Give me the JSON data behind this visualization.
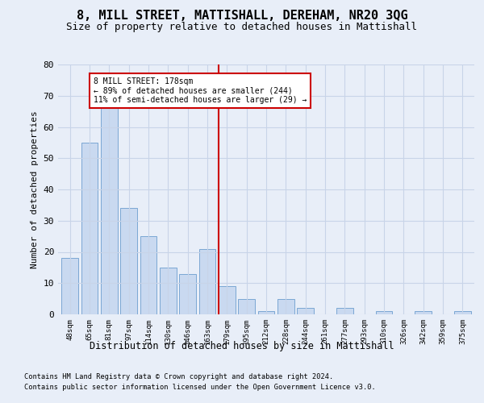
{
  "title": "8, MILL STREET, MATTISHALL, DEREHAM, NR20 3QG",
  "subtitle": "Size of property relative to detached houses in Mattishall",
  "xlabel_bottom": "Distribution of detached houses by size in Mattishall",
  "ylabel": "Number of detached properties",
  "bar_labels": [
    "48sqm",
    "65sqm",
    "81sqm",
    "97sqm",
    "114sqm",
    "130sqm",
    "146sqm",
    "163sqm",
    "179sqm",
    "195sqm",
    "212sqm",
    "228sqm",
    "244sqm",
    "261sqm",
    "277sqm",
    "293sqm",
    "310sqm",
    "326sqm",
    "342sqm",
    "359sqm",
    "375sqm"
  ],
  "bar_values": [
    18,
    55,
    66,
    34,
    25,
    15,
    13,
    21,
    9,
    5,
    1,
    5,
    2,
    0,
    2,
    0,
    1,
    0,
    1,
    0,
    1
  ],
  "bar_color": "#c9d9f0",
  "bar_edgecolor": "#7ba7d4",
  "highlight_line_index": 8,
  "highlight_line_color": "#cc0000",
  "annotation_text": "8 MILL STREET: 178sqm\n← 89% of detached houses are smaller (244)\n11% of semi-detached houses are larger (29) →",
  "annotation_box_color": "#ffffff",
  "annotation_box_edgecolor": "#cc0000",
  "ylim": [
    0,
    80
  ],
  "yticks": [
    0,
    10,
    20,
    30,
    40,
    50,
    60,
    70,
    80
  ],
  "grid_color": "#c8d4e8",
  "background_color": "#e8eef8",
  "footnote1": "Contains HM Land Registry data © Crown copyright and database right 2024.",
  "footnote2": "Contains public sector information licensed under the Open Government Licence v3.0."
}
